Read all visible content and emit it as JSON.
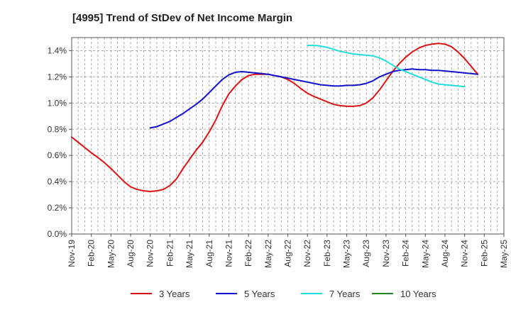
{
  "chart_data": {
    "type": "line",
    "title": "[4995]  Trend of StDev of Net Income Margin",
    "xlabel": "",
    "ylabel": "",
    "x_ticks": [
      "Nov-19",
      "Feb-20",
      "May-20",
      "Aug-20",
      "Nov-20",
      "Feb-21",
      "May-21",
      "Aug-21",
      "Nov-21",
      "Feb-22",
      "May-22",
      "Aug-22",
      "Nov-22",
      "Feb-23",
      "May-23",
      "Aug-23",
      "Nov-23",
      "Feb-24",
      "May-24",
      "Aug-24",
      "Nov-24",
      "Feb-25",
      "May-25"
    ],
    "y_ticks": [
      "0.0%",
      "0.2%",
      "0.4%",
      "0.6%",
      "0.8%",
      "1.0%",
      "1.2%",
      "1.4%"
    ],
    "ylim": [
      0,
      1.5
    ],
    "y_unit": "%",
    "grid": true,
    "legend_position": "bottom",
    "series": [
      {
        "name": "3 Years",
        "color": "#dd1111",
        "points": [
          [
            "Nov-19",
            0.74
          ],
          [
            "Dec-19",
            0.7
          ],
          [
            "Jan-20",
            0.66
          ],
          [
            "Feb-20",
            0.62
          ],
          [
            "Mar-20",
            0.585
          ],
          [
            "Apr-20",
            0.545
          ],
          [
            "May-20",
            0.5
          ],
          [
            "Jun-20",
            0.45
          ],
          [
            "Jul-20",
            0.4
          ],
          [
            "Aug-20",
            0.36
          ],
          [
            "Sep-20",
            0.34
          ],
          [
            "Oct-20",
            0.33
          ],
          [
            "Nov-20",
            0.325
          ],
          [
            "Dec-20",
            0.33
          ],
          [
            "Jan-21",
            0.34
          ],
          [
            "Feb-21",
            0.37
          ],
          [
            "Mar-21",
            0.42
          ],
          [
            "Apr-21",
            0.5
          ],
          [
            "May-21",
            0.57
          ],
          [
            "Jun-21",
            0.64
          ],
          [
            "Jul-21",
            0.7
          ],
          [
            "Aug-21",
            0.78
          ],
          [
            "Sep-21",
            0.87
          ],
          [
            "Oct-21",
            0.98
          ],
          [
            "Nov-21",
            1.07
          ],
          [
            "Dec-21",
            1.13
          ],
          [
            "Jan-22",
            1.18
          ],
          [
            "Feb-22",
            1.21
          ],
          [
            "Mar-22",
            1.22
          ],
          [
            "Apr-22",
            1.22
          ],
          [
            "May-22",
            1.22
          ],
          [
            "Jun-22",
            1.21
          ],
          [
            "Jul-22",
            1.2
          ],
          [
            "Aug-22",
            1.18
          ],
          [
            "Sep-22",
            1.15
          ],
          [
            "Oct-22",
            1.11
          ],
          [
            "Nov-22",
            1.075
          ],
          [
            "Dec-22",
            1.05
          ],
          [
            "Jan-23",
            1.03
          ],
          [
            "Feb-23",
            1.01
          ],
          [
            "Mar-23",
            0.99
          ],
          [
            "Apr-23",
            0.98
          ],
          [
            "May-23",
            0.975
          ],
          [
            "Jun-23",
            0.975
          ],
          [
            "Jul-23",
            0.98
          ],
          [
            "Aug-23",
            1.0
          ],
          [
            "Sep-23",
            1.04
          ],
          [
            "Oct-23",
            1.1
          ],
          [
            "Nov-23",
            1.17
          ],
          [
            "Dec-23",
            1.24
          ],
          [
            "Jan-24",
            1.3
          ],
          [
            "Feb-24",
            1.35
          ],
          [
            "Mar-24",
            1.39
          ],
          [
            "Apr-24",
            1.42
          ],
          [
            "May-24",
            1.44
          ],
          [
            "Jun-24",
            1.45
          ],
          [
            "Jul-24",
            1.455
          ],
          [
            "Aug-24",
            1.45
          ],
          [
            "Sep-24",
            1.43
          ],
          [
            "Oct-24",
            1.39
          ],
          [
            "Nov-24",
            1.34
          ],
          [
            "Dec-24",
            1.28
          ],
          [
            "Jan-25",
            1.22
          ]
        ]
      },
      {
        "name": "5 Years",
        "color": "#1111cc",
        "points": [
          [
            "Nov-20",
            0.81
          ],
          [
            "Dec-20",
            0.82
          ],
          [
            "Jan-21",
            0.84
          ],
          [
            "Feb-21",
            0.86
          ],
          [
            "Mar-21",
            0.89
          ],
          [
            "Apr-21",
            0.92
          ],
          [
            "May-21",
            0.955
          ],
          [
            "Jun-21",
            0.99
          ],
          [
            "Jul-21",
            1.03
          ],
          [
            "Aug-21",
            1.08
          ],
          [
            "Sep-21",
            1.13
          ],
          [
            "Oct-21",
            1.18
          ],
          [
            "Nov-21",
            1.215
          ],
          [
            "Dec-21",
            1.235
          ],
          [
            "Jan-22",
            1.24
          ],
          [
            "Feb-22",
            1.235
          ],
          [
            "Mar-22",
            1.23
          ],
          [
            "Apr-22",
            1.225
          ],
          [
            "May-22",
            1.22
          ],
          [
            "Jun-22",
            1.21
          ],
          [
            "Jul-22",
            1.2
          ],
          [
            "Aug-22",
            1.19
          ],
          [
            "Sep-22",
            1.18
          ],
          [
            "Oct-22",
            1.17
          ],
          [
            "Nov-22",
            1.16
          ],
          [
            "Dec-22",
            1.15
          ],
          [
            "Jan-23",
            1.14
          ],
          [
            "Feb-23",
            1.135
          ],
          [
            "Mar-23",
            1.13
          ],
          [
            "Apr-23",
            1.13
          ],
          [
            "May-23",
            1.135
          ],
          [
            "Jun-23",
            1.135
          ],
          [
            "Jul-23",
            1.14
          ],
          [
            "Aug-23",
            1.15
          ],
          [
            "Sep-23",
            1.17
          ],
          [
            "Oct-23",
            1.2
          ],
          [
            "Nov-23",
            1.22
          ],
          [
            "Dec-23",
            1.24
          ],
          [
            "Jan-24",
            1.25
          ],
          [
            "Feb-24",
            1.255
          ],
          [
            "Mar-24",
            1.26
          ],
          [
            "Apr-24",
            1.255
          ],
          [
            "May-24",
            1.255
          ],
          [
            "Jun-24",
            1.25
          ],
          [
            "Jul-24",
            1.25
          ],
          [
            "Aug-24",
            1.245
          ],
          [
            "Sep-24",
            1.24
          ],
          [
            "Oct-24",
            1.235
          ],
          [
            "Nov-24",
            1.23
          ],
          [
            "Dec-24",
            1.225
          ],
          [
            "Jan-25",
            1.22
          ]
        ]
      },
      {
        "name": "7 Years",
        "color": "#22dddd",
        "points": [
          [
            "Nov-22",
            1.44
          ],
          [
            "Dec-22",
            1.44
          ],
          [
            "Jan-23",
            1.435
          ],
          [
            "Feb-23",
            1.425
          ],
          [
            "Mar-23",
            1.41
          ],
          [
            "Apr-23",
            1.395
          ],
          [
            "May-23",
            1.385
          ],
          [
            "Jun-23",
            1.375
          ],
          [
            "Jul-23",
            1.37
          ],
          [
            "Aug-23",
            1.365
          ],
          [
            "Sep-23",
            1.36
          ],
          [
            "Oct-23",
            1.345
          ],
          [
            "Nov-23",
            1.32
          ],
          [
            "Dec-23",
            1.29
          ],
          [
            "Jan-24",
            1.26
          ],
          [
            "Feb-24",
            1.24
          ],
          [
            "Mar-24",
            1.22
          ],
          [
            "Apr-24",
            1.2
          ],
          [
            "May-24",
            1.18
          ],
          [
            "Jun-24",
            1.16
          ],
          [
            "Jul-24",
            1.145
          ],
          [
            "Aug-24",
            1.14
          ],
          [
            "Sep-24",
            1.135
          ],
          [
            "Oct-24",
            1.13
          ],
          [
            "Nov-24",
            1.125
          ]
        ]
      },
      {
        "name": "10 Years",
        "color": "#228822",
        "points": []
      }
    ]
  }
}
